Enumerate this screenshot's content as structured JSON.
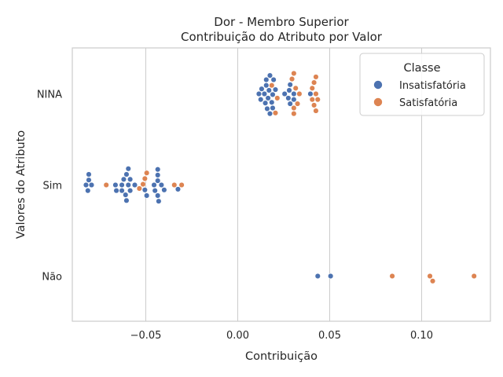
{
  "chart_data": {
    "type": "scatter",
    "subtype": "swarm",
    "title": "Dor - Membro Superior",
    "subtitle": "Contribuição do Atributo por Valor",
    "xlabel": "Contribuição",
    "ylabel": "Valores do Atributo",
    "xlim": [
      -0.092,
      0.138
    ],
    "x_ticks": [
      -0.05,
      0.0,
      0.05,
      0.1
    ],
    "x_tick_labels": [
      "−0.05",
      "0.00",
      "0.05",
      "0.10"
    ],
    "categories": [
      "NINA",
      "Sim",
      "Não"
    ],
    "grid": "vertical",
    "legend": {
      "title": "Classe",
      "placement": "top-right",
      "entries": [
        {
          "label": "Insatisfatória",
          "color": "#4c72b0"
        },
        {
          "label": "Satisfatória",
          "color": "#dd8452"
        }
      ]
    },
    "series": [
      {
        "name": "Insatisfatória",
        "color": "#4c72b0",
        "points": [
          {
            "category": "NINA",
            "x": 0.0205
          },
          {
            "category": "NINA",
            "x": 0.0165
          },
          {
            "category": "NINA",
            "x": 0.0195
          },
          {
            "category": "NINA",
            "x": 0.015
          },
          {
            "category": "NINA",
            "x": 0.017
          },
          {
            "category": "NINA",
            "x": 0.019
          },
          {
            "category": "NINA",
            "x": 0.0125
          },
          {
            "category": "NINA",
            "x": 0.0155
          },
          {
            "category": "NINA",
            "x": 0.0175
          },
          {
            "category": "NINA",
            "x": 0.028
          },
          {
            "category": "NINA",
            "x": 0.0305
          },
          {
            "category": "NINA",
            "x": 0.0115
          },
          {
            "category": "NINA",
            "x": 0.0145
          },
          {
            "category": "NINA",
            "x": 0.0175
          },
          {
            "category": "NINA",
            "x": 0.0255
          },
          {
            "category": "NINA",
            "x": 0.0285
          },
          {
            "category": "NINA",
            "x": 0.0395
          },
          {
            "category": "NINA",
            "x": 0.013
          },
          {
            "category": "NINA",
            "x": 0.0275
          },
          {
            "category": "NINA",
            "x": 0.0305
          },
          {
            "category": "NINA",
            "x": 0.0155
          },
          {
            "category": "NINA",
            "x": 0.0185
          },
          {
            "category": "NINA",
            "x": 0.0285
          },
          {
            "category": "NINA",
            "x": 0.016
          },
          {
            "category": "NINA",
            "x": 0.019
          },
          {
            "category": "Sim",
            "x": -0.0595
          },
          {
            "category": "Sim",
            "x": -0.043
          },
          {
            "category": "Sim",
            "x": -0.0795
          },
          {
            "category": "Sim",
            "x": -0.061
          },
          {
            "category": "Sim",
            "x": -0.0495
          },
          {
            "category": "Sim",
            "x": -0.0435
          },
          {
            "category": "Sim",
            "x": -0.0815
          },
          {
            "category": "Sim",
            "x": -0.066
          },
          {
            "category": "Sim",
            "x": -0.062
          },
          {
            "category": "Sim",
            "x": -0.0585
          },
          {
            "category": "Sim",
            "x": -0.045
          },
          {
            "category": "Sim",
            "x": -0.04
          },
          {
            "category": "Sim",
            "x": -0.0325
          },
          {
            "category": "Sim",
            "x": -0.0825
          },
          {
            "category": "Sim",
            "x": -0.0665
          },
          {
            "category": "Sim",
            "x": -0.063
          },
          {
            "category": "Sim",
            "x": -0.0605
          },
          {
            "category": "Sim",
            "x": -0.056
          },
          {
            "category": "Sim",
            "x": -0.0455
          },
          {
            "category": "Sim",
            "x": -0.0415
          },
          {
            "category": "Sim",
            "x": -0.081
          },
          {
            "category": "Sim",
            "x": -0.063
          },
          {
            "category": "Sim",
            "x": -0.0585
          },
          {
            "category": "Sim",
            "x": -0.0505
          },
          {
            "category": "Sim",
            "x": -0.0435
          },
          {
            "category": "Sim",
            "x": -0.081
          },
          {
            "category": "Sim",
            "x": -0.0605
          },
          {
            "category": "Sim",
            "x": -0.0435
          },
          {
            "category": "Sim",
            "x": -0.0595
          },
          {
            "category": "Sim",
            "x": -0.0435
          },
          {
            "category": "Não",
            "x": 0.0435
          },
          {
            "category": "Não",
            "x": 0.0505
          }
        ]
      },
      {
        "name": "Satisfatória",
        "color": "#dd8452",
        "points": [
          {
            "category": "NINA",
            "x": 0.0315
          },
          {
            "category": "NINA",
            "x": 0.0305
          },
          {
            "category": "NINA",
            "x": 0.0205
          },
          {
            "category": "NINA",
            "x": 0.0295
          },
          {
            "category": "NINA",
            "x": 0.0425
          },
          {
            "category": "NINA",
            "x": 0.0335
          },
          {
            "category": "NINA",
            "x": 0.0415
          },
          {
            "category": "NINA",
            "x": 0.0405
          },
          {
            "category": "NINA",
            "x": 0.0215
          },
          {
            "category": "NINA",
            "x": 0.0425
          },
          {
            "category": "NINA",
            "x": 0.0185
          },
          {
            "category": "NINA",
            "x": 0.0405
          },
          {
            "category": "NINA",
            "x": 0.0325
          },
          {
            "category": "NINA",
            "x": 0.0415
          },
          {
            "category": "NINA",
            "x": 0.0305
          },
          {
            "category": "NINA",
            "x": 0.0425
          },
          {
            "category": "NINA",
            "x": 0.0305
          },
          {
            "category": "NINA",
            "x": 0.0435
          },
          {
            "category": "Sim",
            "x": -0.0505
          },
          {
            "category": "Sim",
            "x": -0.0535
          },
          {
            "category": "Sim",
            "x": -0.0715
          },
          {
            "category": "Sim",
            "x": -0.0515
          },
          {
            "category": "Sim",
            "x": -0.0345
          },
          {
            "category": "Sim",
            "x": -0.0305
          },
          {
            "category": "Sim",
            "x": -0.0495
          },
          {
            "category": "Não",
            "x": 0.106
          },
          {
            "category": "Não",
            "x": 0.084
          },
          {
            "category": "Não",
            "x": 0.1045
          },
          {
            "category": "Não",
            "x": 0.1285
          }
        ]
      }
    ]
  }
}
